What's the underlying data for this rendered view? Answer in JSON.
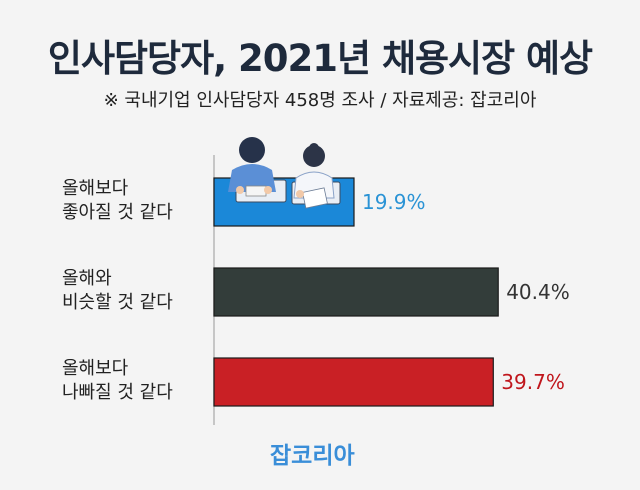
{
  "title": "인사담당자, 2021년 채용시장 예상",
  "subtitle": "※ 국내기업 인사담당자 458명 조사 / 자료제공: 잡코리아",
  "footer": "잡코리아",
  "colors": {
    "bar1": "#1b88d8",
    "bar2": "#333d3a",
    "bar3": "#c92025"
  },
  "chart_data": {
    "type": "bar",
    "orientation": "horizontal",
    "categories": [
      [
        "올해보다",
        "좋아질 것 같다"
      ],
      [
        "올해와",
        "비슷할 것 같다"
      ],
      [
        "올해보다",
        "나빠질 것 같다"
      ]
    ],
    "values": [
      19.9,
      40.4,
      39.7
    ],
    "value_labels": [
      "19.9%",
      "40.4%",
      "39.7%"
    ],
    "value_label_colors": [
      "#2a93d5",
      "#333333",
      "#c0161c"
    ],
    "unit": "%",
    "xlim": [
      0,
      45
    ],
    "grid": false,
    "legend": "none"
  }
}
